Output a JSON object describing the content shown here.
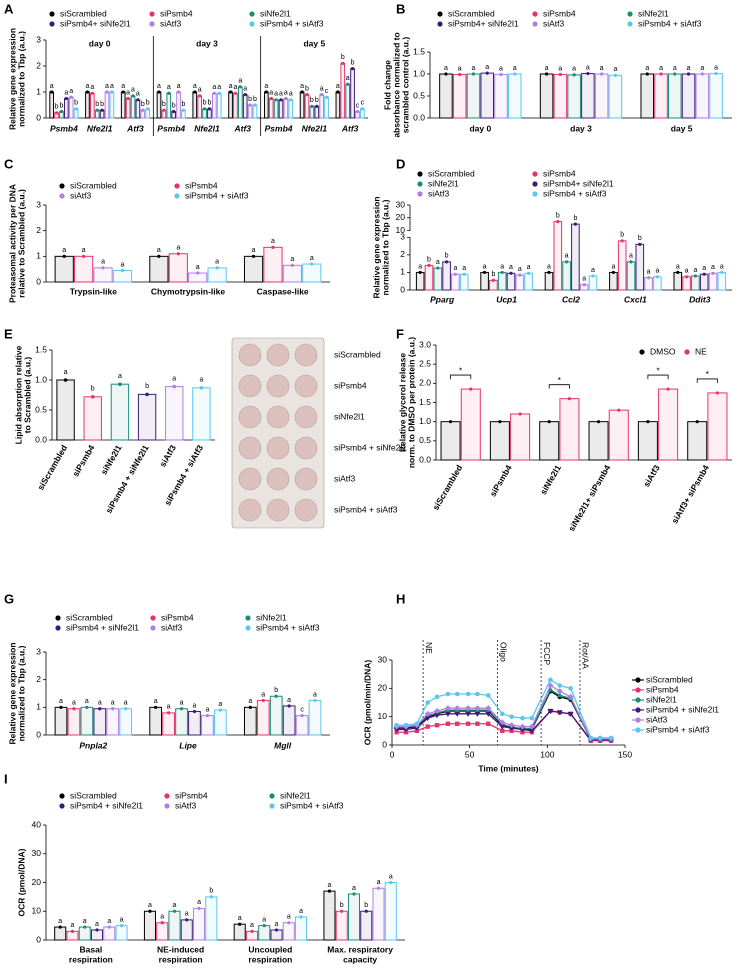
{
  "chart_data": [
    {
      "type": "bar",
      "panel": "A",
      "ylabel": [
        "Relative gene expression",
        "normalized to Tbp (a.u.)"
      ],
      "categories": [
        "Psmb4",
        "Nfe2l1",
        "Atf3",
        "Psmb4",
        "Nfe2l1",
        "Atf3",
        "Psmb4",
        "Nfe2l1",
        "Atf3"
      ],
      "group_labels": [
        "day 0",
        "day 3",
        "day 5"
      ],
      "ylim": [
        0,
        3
      ],
      "yticks": [
        0,
        1,
        2,
        3
      ],
      "series": [
        {
          "name": "siScrambled",
          "color": "#000000",
          "values": [
            1,
            1,
            1,
            1,
            1,
            1,
            1,
            1,
            1
          ],
          "letters": [
            "a",
            "a",
            "a",
            "a",
            "a",
            "a",
            "a",
            "a",
            "a"
          ]
        },
        {
          "name": "siPsmb4",
          "color": "#e6336f",
          "values": [
            0.2,
            0.95,
            0.75,
            0.3,
            0.85,
            0.95,
            0.75,
            0.9,
            2.1
          ],
          "letters": [
            "b",
            "a",
            "a",
            "b",
            "a",
            "a",
            "a",
            "b",
            "b"
          ]
        },
        {
          "name": "siNfe2l1",
          "color": "#1b8c7c",
          "values": [
            0.25,
            0.3,
            0.85,
            0.95,
            0.35,
            1.2,
            0.7,
            0.45,
            1.3
          ],
          "letters": [
            "b",
            "b",
            "a",
            "a",
            "b",
            "a",
            "a",
            "b",
            "a"
          ]
        },
        {
          "name": "siPsmb4+ siNfe2l1",
          "color": "#3d1a78",
          "values": [
            0.75,
            0.3,
            0.7,
            0.25,
            0.35,
            0.9,
            0.7,
            0.45,
            1.9
          ],
          "letters": [
            "a",
            "b",
            "a",
            "b",
            "b",
            "a",
            "a",
            "b",
            "b"
          ]
        },
        {
          "name": "siAtf3",
          "color": "#b07ee6",
          "values": [
            0.8,
            1.0,
            0.3,
            1.0,
            0.95,
            0.5,
            0.75,
            0.9,
            0.25
          ],
          "letters": [
            "a",
            "a",
            "b",
            "a",
            "a",
            "b",
            "a",
            "a",
            "c"
          ]
        },
        {
          "name": "siPsmb4 + siAtf3",
          "color": "#5cc6ef",
          "values": [
            0.35,
            1.0,
            0.35,
            0.3,
            0.95,
            0.5,
            0.7,
            0.8,
            0.35
          ],
          "letters": [
            "b",
            "a",
            "b",
            "b",
            "a",
            "b",
            "a",
            "c",
            "c"
          ]
        }
      ]
    },
    {
      "type": "bar",
      "panel": "B",
      "ylabel": [
        "Fold change",
        "absorbance normalized to",
        "scrambled control (a.u.)"
      ],
      "categories": [
        "day 0",
        "day 3",
        "day 5"
      ],
      "ylim": [
        0,
        1.5
      ],
      "yticks": [
        {
          "value": 0,
          "label": "0.0"
        },
        {
          "value": 0.5,
          "label": "0.5"
        },
        {
          "value": 1,
          "label": "1.0"
        },
        {
          "value": 1.5,
          "label": "1.5"
        }
      ],
      "series": [
        {
          "name": "siScrambled",
          "color": "#000000",
          "values": [
            1.0,
            1.0,
            1.0
          ],
          "letters": [
            "a",
            "a",
            "a"
          ]
        },
        {
          "name": "siPsmb4",
          "color": "#e6336f",
          "values": [
            0.99,
            0.99,
            1.0
          ],
          "letters": [
            "a",
            "a",
            "a"
          ]
        },
        {
          "name": "siNfe2l1",
          "color": "#1b8c7c",
          "values": [
            1.0,
            0.98,
            1.0
          ],
          "letters": [
            "a",
            "a",
            "a"
          ]
        },
        {
          "name": "siPsmb4+ siNfe2l1",
          "color": "#3d1a78",
          "values": [
            1.02,
            1.01,
            1.0
          ],
          "letters": [
            "a",
            "a",
            "a"
          ]
        },
        {
          "name": "siAtf3",
          "color": "#b07ee6",
          "values": [
            0.99,
            1.0,
            1.0
          ],
          "letters": [
            "a",
            "a",
            "a"
          ]
        },
        {
          "name": "siPsmb4 + siAtf3",
          "color": "#5cc6ef",
          "values": [
            1.0,
            0.97,
            1.01
          ],
          "letters": [
            "a",
            "a",
            "a"
          ]
        }
      ]
    },
    {
      "type": "bar",
      "panel": "C",
      "ylabel": [
        "Proteasomal activity per DNA",
        "relative to Scrambled (a.u.)"
      ],
      "categories": [
        "Trypsin-like",
        "Chymotrypsin-like",
        "Caspase-like"
      ],
      "ylim": [
        0,
        3
      ],
      "yticks": [
        0,
        1,
        2,
        3
      ],
      "series": [
        {
          "name": "siScrambled",
          "color": "#000000",
          "values": [
            1.0,
            1.0,
            1.0
          ],
          "letters": [
            "a",
            "a",
            "a"
          ]
        },
        {
          "name": "siPsmb4",
          "color": "#e6336f",
          "values": [
            1.0,
            1.1,
            1.35
          ],
          "letters": [
            "a",
            "a",
            "a"
          ]
        },
        {
          "name": "siAtf3",
          "color": "#b07ee6",
          "values": [
            0.55,
            0.35,
            0.65
          ],
          "letters": [
            "a",
            "a",
            "a"
          ]
        },
        {
          "name": "siPsmb4 + siAtf3",
          "color": "#5cc6ef",
          "values": [
            0.45,
            0.55,
            0.7
          ],
          "letters": [
            "a",
            "a",
            "a"
          ]
        }
      ]
    },
    {
      "type": "bar",
      "panel": "D",
      "ylabel": [
        "Relative gene expression",
        "normalized to Tbp (a.u.)"
      ],
      "categories": [
        "Pparg",
        "Ucp1",
        "Ccl2",
        "Cxcl1",
        "Ddit3"
      ],
      "ylim": [
        0,
        30
      ],
      "ybreak": [
        3,
        10
      ],
      "yticks": [
        0,
        1,
        2,
        3,
        10,
        20,
        30
      ],
      "series": [
        {
          "name": "siScrambled",
          "color": "#000000",
          "values": [
            1,
            1,
            1,
            1,
            1
          ],
          "letters": [
            "a",
            "a",
            "a",
            "a",
            "a"
          ]
        },
        {
          "name": "siPsmb4",
          "color": "#e6336f",
          "values": [
            1.4,
            0.55,
            17,
            2.8,
            0.75
          ],
          "letters": [
            "b",
            "b",
            "b",
            "b",
            "a"
          ]
        },
        {
          "name": "siNfe2l1",
          "color": "#1b8c7c",
          "values": [
            1.25,
            1.0,
            1.6,
            1.6,
            0.8
          ],
          "letters": [
            "a",
            "a",
            "a",
            "a",
            "a"
          ]
        },
        {
          "name": "siPsmb4+ siNfe2l1",
          "color": "#3d1a78",
          "values": [
            1.6,
            0.95,
            15,
            2.6,
            0.9
          ],
          "letters": [
            "b",
            "a",
            "b",
            "b",
            "a"
          ]
        },
        {
          "name": "siAtf3",
          "color": "#b07ee6",
          "values": [
            0.9,
            0.85,
            0.3,
            0.7,
            0.95
          ],
          "letters": [
            "a",
            "a",
            "a",
            "a",
            "a"
          ]
        },
        {
          "name": "siPsmb4 + siAtf3",
          "color": "#5cc6ef",
          "values": [
            0.9,
            0.95,
            0.8,
            0.75,
            1.0
          ],
          "letters": [
            "a",
            "a",
            "a",
            "a",
            "a"
          ]
        }
      ]
    },
    {
      "type": "colorbar",
      "panel": "E",
      "ylabel": [
        "Lipid absorption relative",
        "to Scrambled (a.u.)"
      ],
      "categories": [
        "siScrambled",
        "siPsmb4",
        "siNfe2l1",
        "siPsmb4 + siNfe2l1",
        "siAtf3",
        "siPsmb4 + siAtf3"
      ],
      "values": [
        1.0,
        0.72,
        0.93,
        0.76,
        0.89,
        0.87
      ],
      "colors": [
        "#000000",
        "#e6336f",
        "#1b8c7c",
        "#3d1a78",
        "#b07ee6",
        "#5cc6ef"
      ],
      "letters": [
        "a",
        "b",
        "a",
        "b",
        "a",
        "a"
      ],
      "ylim": [
        0,
        1.5
      ],
      "yticks": [
        {
          "value": 0,
          "label": "0.0"
        },
        {
          "value": 0.5,
          "label": "0.5"
        },
        {
          "value": 1,
          "label": "1.0"
        },
        {
          "value": 1.5,
          "label": "1.5"
        }
      ],
      "plate_labels": [
        "siScrambled",
        "siPsmb4",
        "siNfe2l1",
        "siPsmb4 + siNfe2l1",
        "siAtf3",
        "siPsmb4 + siAtf3"
      ]
    },
    {
      "type": "bar",
      "panel": "F",
      "ylabel": [
        "Relative glycerol release",
        "norm. to DMSO per protein (a.u.)"
      ],
      "categories": [
        "siScrambled",
        "siPsmb4",
        "siNfe2l1",
        "siNfe2l1+ siPsmb4",
        "siAtf3",
        "siAtf3+ siPsmb4"
      ],
      "ylim": [
        0,
        3
      ],
      "yticks": [
        {
          "value": 0,
          "label": "0.0"
        },
        {
          "value": 0.5,
          "label": "0.5"
        },
        {
          "value": 1,
          "label": "1.0"
        },
        {
          "value": 1.5,
          "label": "1.5"
        },
        {
          "value": 2,
          "label": "2.0"
        },
        {
          "value": 2.5,
          "label": "2.5"
        },
        {
          "value": 3,
          "label": "3.0"
        }
      ],
      "significance": [
        "*",
        null,
        "*",
        null,
        "*",
        "*"
      ],
      "series": [
        {
          "name": "DMSO",
          "color": "#000000",
          "values": [
            1.0,
            1.0,
            1.0,
            1.0,
            1.0,
            1.0
          ]
        },
        {
          "name": "NE",
          "color": "#e6336f",
          "values": [
            1.85,
            1.2,
            1.6,
            1.3,
            1.85,
            1.75
          ]
        }
      ]
    },
    {
      "type": "bar",
      "panel": "G",
      "ylabel": [
        "Relative gene expression",
        "normalized to Tbp (a.u.)"
      ],
      "categories": [
        "Pnpla2",
        "Lipe",
        "Mgll"
      ],
      "ylim": [
        0,
        3
      ],
      "yticks": [
        0,
        1,
        2,
        3
      ],
      "series": [
        {
          "name": "siScrambled",
          "color": "#000000",
          "values": [
            1.0,
            1.0,
            1.0
          ],
          "letters": [
            "a",
            "a",
            "a"
          ]
        },
        {
          "name": "siPsmb4",
          "color": "#e6336f",
          "values": [
            0.95,
            0.8,
            1.25
          ],
          "letters": [
            "a",
            "a",
            "a"
          ]
        },
        {
          "name": "siNfe2l1",
          "color": "#1b8c7c",
          "values": [
            1.0,
            0.95,
            1.4
          ],
          "letters": [
            "a",
            "a",
            "b"
          ]
        },
        {
          "name": "siPsmb4 + siNfe2l1",
          "color": "#3d1a78",
          "values": [
            0.95,
            0.85,
            1.05
          ],
          "letters": [
            "a",
            "a",
            "a"
          ]
        },
        {
          "name": "siAtf3",
          "color": "#b07ee6",
          "values": [
            0.95,
            0.7,
            0.7
          ],
          "letters": [
            "a",
            "a",
            "c"
          ]
        },
        {
          "name": "siPsmb4 + siAtf3",
          "color": "#5cc6ef",
          "values": [
            0.95,
            0.9,
            1.25
          ],
          "letters": [
            "a",
            "a",
            "a"
          ]
        }
      ]
    },
    {
      "type": "line",
      "panel": "H",
      "xlabel": "Time (minutes)",
      "ylabel": [
        "OCR (pmol/min/DNA)"
      ],
      "x": [
        3,
        9,
        16,
        23,
        29,
        36,
        42,
        49,
        55,
        62,
        71,
        77,
        84,
        90,
        102,
        108,
        115,
        128,
        134,
        141
      ],
      "xlim": [
        0,
        150
      ],
      "xticks": [
        0,
        50,
        100,
        150
      ],
      "ylim": [
        0,
        30
      ],
      "yticks": [
        0,
        10,
        20,
        30
      ],
      "annotations": [
        {
          "text": "NE",
          "x": 20
        },
        {
          "text": "Oligo",
          "x": 68
        },
        {
          "text": "FCCP",
          "x": 96
        },
        {
          "text": "Rot/AA",
          "x": 121
        }
      ],
      "series": [
        {
          "name": "siScrambled",
          "color": "#000000",
          "marker": "circle",
          "values": [
            6,
            6,
            6.5,
            10,
            11,
            12,
            12,
            12,
            12,
            12,
            7,
            6,
            5.5,
            5.5,
            19,
            17,
            16,
            2,
            2,
            2
          ]
        },
        {
          "name": "siPsmb4",
          "color": "#e6336f",
          "marker": "square",
          "values": [
            4.5,
            4.5,
            5,
            6.5,
            7,
            7.5,
            7.5,
            7.5,
            7.5,
            7.5,
            5,
            5,
            4.5,
            4.5,
            12,
            11.5,
            11,
            1.5,
            1.5,
            1.5
          ]
        },
        {
          "name": "siNfe2l1",
          "color": "#1b8c7c",
          "marker": "triangle",
          "values": [
            6.3,
            6.3,
            6.8,
            10.3,
            11.3,
            12.3,
            12.3,
            12.3,
            12.3,
            12.3,
            7.3,
            6.3,
            5.8,
            5.8,
            19.5,
            17.5,
            16.5,
            2,
            2,
            2
          ]
        },
        {
          "name": "siPsmb4 + siNfe2l1",
          "color": "#3d1a78",
          "marker": "triangle-down",
          "values": [
            5.5,
            5.5,
            6,
            9.5,
            10.5,
            11,
            11,
            11,
            11,
            11,
            6.5,
            6,
            5.5,
            5,
            12,
            11.5,
            11,
            1.8,
            1.8,
            1.8
          ]
        },
        {
          "name": "siAtf3",
          "color": "#b07ee6",
          "marker": "diamond",
          "values": [
            6.5,
            6.5,
            7,
            11,
            12,
            13,
            13,
            13,
            13,
            13,
            8,
            7,
            6.5,
            6.5,
            21,
            19,
            17,
            2.2,
            2.2,
            2.2
          ]
        },
        {
          "name": "siPsmb4 + siAtf3",
          "color": "#5cc6ef",
          "marker": "circle",
          "values": [
            7,
            7,
            7.5,
            15,
            17,
            18,
            18,
            18,
            18,
            17.5,
            11,
            10,
            9.5,
            9.5,
            23,
            21,
            20,
            2.5,
            2.5,
            2.5
          ]
        }
      ]
    },
    {
      "type": "bar",
      "panel": "I",
      "ylabel": [
        "OCR (pmol/DNA)"
      ],
      "categories": [
        [
          "Basal",
          "respiration"
        ],
        [
          "NE-induced",
          "respiration"
        ],
        [
          "Uncoupled",
          "respiration"
        ],
        [
          "Max. respiratory",
          "capacity"
        ]
      ],
      "ylim": [
        0,
        40
      ],
      "yticks": [
        0,
        10,
        20,
        30,
        40
      ],
      "series": [
        {
          "name": "siScrambled",
          "color": "#000000",
          "values": [
            4.5,
            10,
            5.5,
            17
          ],
          "letters": [
            "a",
            "a",
            "a",
            "a"
          ]
        },
        {
          "name": "siPsmb4",
          "color": "#e6336f",
          "values": [
            3,
            6,
            3,
            10
          ],
          "letters": [
            "a",
            "a",
            "a",
            "b"
          ]
        },
        {
          "name": "siNfe2l1",
          "color": "#1b8c7c",
          "values": [
            4.5,
            10,
            5,
            16
          ],
          "letters": [
            "a",
            "a",
            "a",
            "a"
          ]
        },
        {
          "name": "siPsmb4 + siNfe2l1",
          "color": "#3d1a78",
          "values": [
            3.5,
            7,
            3.5,
            10
          ],
          "letters": [
            "a",
            "a",
            "a",
            "b"
          ]
        },
        {
          "name": "siAtf3",
          "color": "#b07ee6",
          "values": [
            4.5,
            11,
            6,
            18
          ],
          "letters": [
            "a",
            "a",
            "a",
            "a"
          ]
        },
        {
          "name": "siPsmb4 + siAtf3",
          "color": "#5cc6ef",
          "values": [
            5,
            15,
            8,
            20
          ],
          "letters": [
            "a",
            "b",
            "a",
            "a"
          ]
        }
      ]
    }
  ]
}
